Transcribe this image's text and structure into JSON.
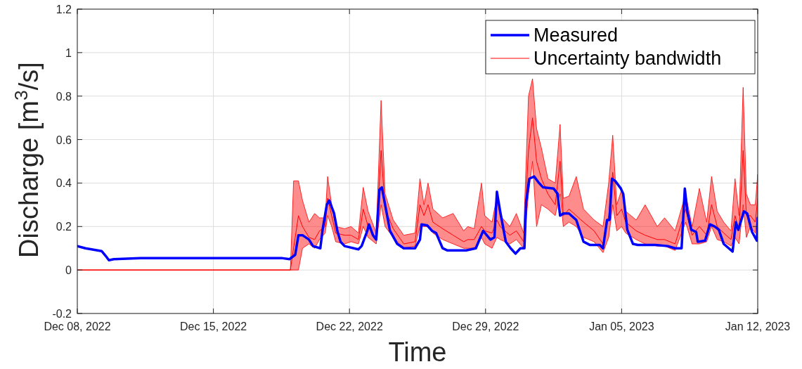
{
  "chart_data": {
    "type": "line",
    "xlabel": "Time",
    "ylabel": "Discharge [m$^{3}$/s]",
    "xlim": [
      "2022-12-08",
      "2023-01-12"
    ],
    "xticks": [
      {
        "value": "2022-12-08",
        "label": "Dec 08, 2022"
      },
      {
        "value": "2022-12-15",
        "label": "Dec 15, 2022"
      },
      {
        "value": "2022-12-22",
        "label": "Dec 22, 2022"
      },
      {
        "value": "2022-12-29",
        "label": "Dec 29, 2022"
      },
      {
        "value": "2023-01-05",
        "label": "Jan 05, 2023"
      },
      {
        "value": "2023-01-12",
        "label": "Jan 12, 2023"
      }
    ],
    "ylim": [
      -0.2,
      1.2
    ],
    "yticks": [
      -0.2,
      0,
      0.2,
      0.4,
      0.6,
      0.8,
      1,
      1.2
    ],
    "grid": true,
    "legend": "top right",
    "series": [
      {
        "name": "Uncertainty bandwidth",
        "color": "#ff0000",
        "x": [
          "2022-12-08T00:00",
          "2022-12-18T23:00",
          "2022-12-19T03:00",
          "2022-12-19T09:00",
          "2022-12-19T14:00",
          "2022-12-19T22:00",
          "2022-12-20T05:00",
          "2022-12-20T11:00",
          "2022-12-20T18:00",
          "2022-12-20T21:00",
          "2022-12-21T02:00",
          "2022-12-21T07:00",
          "2022-12-21T18:00",
          "2022-12-22T02:00",
          "2022-12-22T11:00",
          "2022-12-22T17:00",
          "2022-12-22T23:00",
          "2022-12-23T09:00",
          "2022-12-23T15:00",
          "2022-12-23T20:00",
          "2022-12-24T06:00",
          "2022-12-24T19:00",
          "2022-12-25T09:00",
          "2022-12-25T15:00",
          "2022-12-25T20:00",
          "2022-12-26T01:00",
          "2022-12-26T07:00",
          "2022-12-26T19:00",
          "2022-12-27T08:00",
          "2022-12-27T21:00",
          "2022-12-28T02:00",
          "2022-12-28T10:00",
          "2022-12-28T19:00",
          "2022-12-28T23:00",
          "2022-12-29T08:00",
          "2022-12-29T14:00",
          "2022-12-29T18:00",
          "2022-12-30T06:00",
          "2022-12-30T14:00",
          "2022-12-30T23:00",
          "2022-12-31T05:00",
          "2022-12-31T10:00",
          "2022-12-31T15:00",
          "2022-12-31T21:00",
          "2023-01-01T05:00",
          "2023-01-01T14:00",
          "2023-01-01T20:00",
          "2023-01-02T00:00",
          "2023-01-02T07:00",
          "2023-01-02T16:00",
          "2023-01-03T01:00",
          "2023-01-03T14:00",
          "2023-01-04T01:00",
          "2023-01-04T08:00",
          "2023-01-04T13:00",
          "2023-01-04T18:00",
          "2023-01-05T00:00",
          "2023-01-05T05:00",
          "2023-01-05T18:00",
          "2023-01-06T05:00",
          "2023-01-06T20:00",
          "2023-01-07T05:00",
          "2023-01-07T18:00",
          "2023-01-08T07:00",
          "2023-01-08T15:00",
          "2023-01-09T00:00",
          "2023-01-09T09:00",
          "2023-01-09T15:00",
          "2023-01-09T22:00",
          "2023-01-10T06:00",
          "2023-01-10T15:00",
          "2023-01-10T20:00",
          "2023-01-11T01:00",
          "2023-01-11T06:00",
          "2023-01-11T10:00",
          "2023-01-11T15:00",
          "2023-01-11T21:00",
          "2023-01-12T00:00"
        ],
        "values": [
          0,
          0,
          0.1,
          0.25,
          0.2,
          0.15,
          0.14,
          0.18,
          0.2,
          0.33,
          0.25,
          0.17,
          0.16,
          0.16,
          0.14,
          0.28,
          0.2,
          0.14,
          0.55,
          0.28,
          0.19,
          0.12,
          0.13,
          0.3,
          0.25,
          0.3,
          0.22,
          0.19,
          0.16,
          0.13,
          0.14,
          0.14,
          0.2,
          0.18,
          0.17,
          0.23,
          0.2,
          0.16,
          0.18,
          0.13,
          0.55,
          0.7,
          0.5,
          0.42,
          0.35,
          0.3,
          0.5,
          0.25,
          0.28,
          0.25,
          0.22,
          0.18,
          0.12,
          0.25,
          0.45,
          0.25,
          0.28,
          0.22,
          0.18,
          0.16,
          0.14,
          0.14,
          0.12,
          0.28,
          0.16,
          0.2,
          0.16,
          0.3,
          0.2,
          0.17,
          0.14,
          0.25,
          0.18,
          0.55,
          0.25,
          0.25,
          0.22,
          0.33
        ],
        "lower": [
          0,
          0,
          0,
          0,
          0.1,
          0.12,
          0.1,
          0.14,
          0.17,
          0.25,
          0.2,
          0.13,
          0.12,
          0.13,
          0.12,
          0.2,
          0.15,
          0.12,
          0.3,
          0.2,
          0.15,
          0.1,
          0.11,
          0.2,
          0.2,
          0.2,
          0.17,
          0.14,
          0.12,
          0.1,
          0.1,
          0.1,
          0.15,
          0.12,
          0.1,
          0.15,
          0.14,
          0.12,
          0.14,
          0.1,
          0.35,
          0.5,
          0.2,
          0.3,
          0.28,
          0.25,
          0.35,
          0.2,
          0.22,
          0.2,
          0.15,
          0.13,
          0.08,
          0.15,
          0.3,
          0.18,
          0.2,
          0.17,
          0.14,
          0.12,
          0.11,
          0.11,
          0.09,
          0.22,
          0.12,
          0.12,
          0.13,
          0.2,
          0.14,
          0.13,
          0.11,
          0.15,
          0.12,
          0.3,
          0.15,
          0.2,
          0.17,
          0.25
        ],
        "upper": [
          0,
          0,
          0.41,
          0.41,
          0.32,
          0.22,
          0.26,
          0.24,
          0.24,
          0.43,
          0.3,
          0.2,
          0.19,
          0.2,
          0.17,
          0.38,
          0.27,
          0.17,
          0.78,
          0.35,
          0.23,
          0.16,
          0.17,
          0.42,
          0.3,
          0.4,
          0.28,
          0.24,
          0.26,
          0.18,
          0.2,
          0.19,
          0.4,
          0.25,
          0.22,
          0.34,
          0.25,
          0.2,
          0.26,
          0.17,
          0.8,
          0.88,
          0.65,
          0.56,
          0.42,
          0.4,
          0.67,
          0.33,
          0.34,
          0.43,
          0.28,
          0.23,
          0.2,
          0.4,
          0.62,
          0.3,
          0.37,
          0.27,
          0.23,
          0.3,
          0.2,
          0.24,
          0.18,
          0.35,
          0.2,
          0.375,
          0.22,
          0.43,
          0.27,
          0.22,
          0.18,
          0.42,
          0.25,
          0.84,
          0.35,
          0.3,
          0.3,
          0.44
        ]
      },
      {
        "name": "Measured",
        "color": "#0000ff",
        "x": [
          "2022-12-08T00:00",
          "2022-12-08T10:00",
          "2022-12-09T06:00",
          "2022-12-09T11:00",
          "2022-12-09T15:00",
          "2022-12-09T21:00",
          "2022-12-11T06:00",
          "2022-12-14T21:00",
          "2022-12-18T12:00",
          "2022-12-18T22:00",
          "2022-12-19T05:00",
          "2022-12-19T09:00",
          "2022-12-19T14:00",
          "2022-12-19T22:00",
          "2022-12-20T03:00",
          "2022-12-20T12:00",
          "2022-12-20T15:00",
          "2022-12-20T20:00",
          "2022-12-20T23:00",
          "2022-12-21T05:00",
          "2022-12-21T09:00",
          "2022-12-21T13:00",
          "2022-12-21T18:00",
          "2022-12-22T11:00",
          "2022-12-22T15:00",
          "2022-12-22T22:00",
          "2022-12-23T00:00",
          "2022-12-23T05:00",
          "2022-12-23T09:00",
          "2022-12-23T13:00",
          "2022-12-23T16:00",
          "2022-12-23T20:00",
          "2022-12-24T02:00",
          "2022-12-24T11:00",
          "2022-12-24T19:00",
          "2022-12-25T09:00",
          "2022-12-25T15:00",
          "2022-12-25T17:00",
          "2022-12-26T00:00",
          "2022-12-26T06:00",
          "2022-12-26T11:00",
          "2022-12-26T19:00",
          "2022-12-27T01:00",
          "2022-12-28T00:00",
          "2022-12-28T12:00",
          "2022-12-28T21:00",
          "2022-12-29T06:00",
          "2022-12-29T11:00",
          "2022-12-29T14:00",
          "2022-12-29T18:00",
          "2022-12-30T01:00",
          "2022-12-30T07:00",
          "2022-12-30T13:00",
          "2022-12-30T19:00",
          "2022-12-31T00:00",
          "2022-12-31T02:00",
          "2022-12-31T06:00",
          "2022-12-31T12:00",
          "2022-12-31T18:00",
          "2022-12-31T23:00",
          "2023-01-01T12:00",
          "2023-01-01T17:00",
          "2023-01-01T20:00",
          "2023-01-02T00:00",
          "2023-01-02T07:00",
          "2023-01-02T16:00",
          "2023-01-03T01:00",
          "2023-01-03T09:00",
          "2023-01-03T21:00",
          "2023-01-04T01:00",
          "2023-01-04T06:00",
          "2023-01-04T09:00",
          "2023-01-04T12:00",
          "2023-01-04T16:00",
          "2023-01-04T23:00",
          "2023-01-05T02:00",
          "2023-01-05T07:00",
          "2023-01-05T14:00",
          "2023-01-05T20:00",
          "2023-01-06T18:00",
          "2023-01-07T09:00",
          "2023-01-07T18:00",
          "2023-01-08T02:00",
          "2023-01-08T06:00",
          "2023-01-08T09:00",
          "2023-01-08T14:00",
          "2023-01-08T20:00",
          "2023-01-08T22:00",
          "2023-01-09T07:00",
          "2023-01-09T13:00",
          "2023-01-09T19:00",
          "2023-01-10T00:00",
          "2023-01-10T06:00",
          "2023-01-10T17:00",
          "2023-01-10T21:00",
          "2023-01-11T00:00",
          "2023-01-11T07:00",
          "2023-01-11T11:00",
          "2023-01-11T17:00",
          "2023-01-11T23:00",
          "2023-01-12T00:00"
        ],
        "values": [
          0.11,
          0.1,
          0.087,
          0.065,
          0.045,
          0.05,
          0.055,
          0.055,
          0.055,
          0.05,
          0.07,
          0.16,
          0.16,
          0.14,
          0.11,
          0.1,
          0.19,
          0.3,
          0.32,
          0.26,
          0.18,
          0.13,
          0.11,
          0.095,
          0.11,
          0.18,
          0.21,
          0.16,
          0.14,
          0.37,
          0.38,
          0.3,
          0.18,
          0.12,
          0.1,
          0.1,
          0.14,
          0.21,
          0.205,
          0.18,
          0.17,
          0.1,
          0.09,
          0.09,
          0.1,
          0.18,
          0.14,
          0.15,
          0.36,
          0.27,
          0.13,
          0.1,
          0.075,
          0.1,
          0.1,
          0.31,
          0.42,
          0.43,
          0.4,
          0.38,
          0.375,
          0.35,
          0.25,
          0.26,
          0.26,
          0.23,
          0.13,
          0.115,
          0.115,
          0.1,
          0.23,
          0.23,
          0.42,
          0.41,
          0.375,
          0.35,
          0.185,
          0.12,
          0.115,
          0.115,
          0.11,
          0.1,
          0.1,
          0.375,
          0.27,
          0.185,
          0.175,
          0.13,
          0.135,
          0.21,
          0.2,
          0.185,
          0.12,
          0.085,
          0.22,
          0.185,
          0.27,
          0.26,
          0.175,
          0.135,
          0.24
        ]
      }
    ]
  }
}
